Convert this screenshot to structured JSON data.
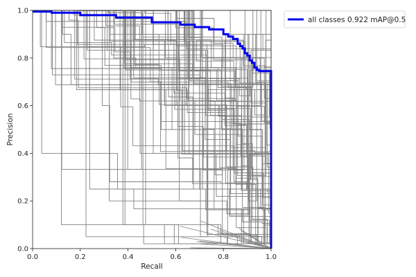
{
  "chart_data": {
    "type": "line",
    "title": "",
    "xlabel": "Recall",
    "ylabel": "Precision",
    "xlim": [
      0.0,
      1.0
    ],
    "ylim": [
      0.0,
      1.0
    ],
    "xticks": [
      "0.0",
      "0.2",
      "0.4",
      "0.6",
      "0.8",
      "1.0"
    ],
    "yticks": [
      "0.0",
      "0.2",
      "0.4",
      "0.6",
      "0.8",
      "1.0"
    ],
    "grid": false,
    "legend_position": "outside upper right",
    "colors": {
      "per_class": "#808080",
      "all_classes": "#0000ee"
    },
    "series": [
      {
        "name": "all classes 0.922 mAP@0.5",
        "color": "#0000ee",
        "x": [
          0.0,
          0.08,
          0.2,
          0.35,
          0.5,
          0.62,
          0.68,
          0.74,
          0.8,
          0.82,
          0.84,
          0.86,
          0.87,
          0.88,
          0.89,
          0.9,
          0.91,
          0.92,
          0.93,
          0.94,
          0.95,
          1.0,
          1.0
        ],
        "y": [
          0.995,
          0.99,
          0.98,
          0.97,
          0.95,
          0.94,
          0.93,
          0.92,
          0.9,
          0.89,
          0.88,
          0.86,
          0.85,
          0.84,
          0.82,
          0.81,
          0.79,
          0.78,
          0.76,
          0.75,
          0.745,
          0.74,
          0.0
        ]
      }
    ],
    "per_class_curves_note": "many gray per-class step curves (precision levels e.g. 1.0, 0.9, 0.875, 0.857, 0.833, 0.8, 0.75, 0.667, 0.6, 0.5, 0.4, 0.333, 0.25, 0.2, 0.167, 0.1 ...)"
  },
  "legend": {
    "label": "all classes 0.922 mAP@0.5"
  }
}
